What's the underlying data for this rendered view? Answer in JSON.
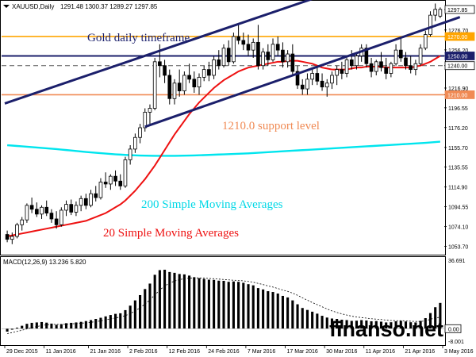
{
  "header": {
    "symbol": "XAUUSD,Daily",
    "ohlc": "1291.48 1300.37 1289.27 1297.85"
  },
  "watermark": "finanso.net",
  "colors": {
    "background": "#ffffff",
    "up_candle": "#ffffff",
    "down_candle": "#000000",
    "channel": "#1b1f6b",
    "resistance_1270": "#ffa500",
    "level_1250": "#1b1f6b",
    "support_1210": "#f08a54",
    "sma20": "#ee1111",
    "sma200": "#00e5ee",
    "bid_line": "#555555"
  },
  "chart_data": [
    {
      "type": "candlestick",
      "title": "XAUUSD,Daily",
      "ylim": [
        1046.0,
        1306.0
      ],
      "y_ticks": [
        "1297.85",
        "1276.70",
        "1270.00",
        "1256.20",
        "1250.00",
        "1240.00",
        "1216.90",
        "1210.00",
        "1196.55",
        "1176.20",
        "1155.70",
        "1135.55",
        "1114.90",
        "1094.55",
        "1074.10",
        "1053.70"
      ],
      "x_ticks": [
        {
          "index": 0,
          "label": "29 Dec 2015"
        },
        {
          "index": 8,
          "label": "11 Jan 2016"
        },
        {
          "index": 17,
          "label": "21 Jan 2016"
        },
        {
          "index": 25,
          "label": "2 Feb 2016"
        },
        {
          "index": 33,
          "label": "12 Feb 2016"
        },
        {
          "index": 41,
          "label": "24 Feb 2016"
        },
        {
          "index": 49,
          "label": "7 Mar 2016"
        },
        {
          "index": 57,
          "label": "17 Mar 2016"
        },
        {
          "index": 65,
          "label": "30 Mar 2016"
        },
        {
          "index": 73,
          "label": "11 Apr 2016"
        },
        {
          "index": 81,
          "label": "21 Apr 2016"
        },
        {
          "index": 89,
          "label": "3 May 2016"
        }
      ],
      "ohlc": [
        [
          1066,
          1070,
          1058,
          1061
        ],
        [
          1061,
          1068,
          1056,
          1064
        ],
        [
          1064,
          1078,
          1062,
          1076
        ],
        [
          1076,
          1084,
          1070,
          1081
        ],
        [
          1081,
          1098,
          1078,
          1096
        ],
        [
          1096,
          1104,
          1088,
          1092
        ],
        [
          1092,
          1099,
          1084,
          1087
        ],
        [
          1087,
          1096,
          1082,
          1094
        ],
        [
          1094,
          1101,
          1085,
          1088
        ],
        [
          1088,
          1092,
          1078,
          1082
        ],
        [
          1082,
          1090,
          1072,
          1076
        ],
        [
          1076,
          1094,
          1074,
          1091
        ],
        [
          1091,
          1101,
          1085,
          1097
        ],
        [
          1097,
          1102,
          1086,
          1089
        ],
        [
          1089,
          1100,
          1085,
          1096
        ],
        [
          1096,
          1106,
          1090,
          1103
        ],
        [
          1103,
          1108,
          1092,
          1096
        ],
        [
          1096,
          1112,
          1094,
          1108
        ],
        [
          1108,
          1116,
          1100,
          1104
        ],
        [
          1104,
          1124,
          1102,
          1120
        ],
        [
          1120,
          1130,
          1114,
          1118
        ],
        [
          1118,
          1128,
          1112,
          1126
        ],
        [
          1126,
          1132,
          1116,
          1121
        ],
        [
          1121,
          1128,
          1112,
          1116
        ],
        [
          1116,
          1146,
          1114,
          1143
        ],
        [
          1143,
          1158,
          1138,
          1154
        ],
        [
          1154,
          1170,
          1150,
          1166
        ],
        [
          1166,
          1180,
          1160,
          1176
        ],
        [
          1176,
          1196,
          1172,
          1192
        ],
        [
          1192,
          1200,
          1180,
          1196
        ],
        [
          1196,
          1248,
          1194,
          1244
        ],
        [
          1244,
          1262,
          1228,
          1240
        ],
        [
          1240,
          1246,
          1222,
          1230
        ],
        [
          1230,
          1236,
          1200,
          1206
        ],
        [
          1206,
          1226,
          1200,
          1222
        ],
        [
          1222,
          1236,
          1208,
          1214
        ],
        [
          1214,
          1234,
          1210,
          1230
        ],
        [
          1230,
          1242,
          1222,
          1226
        ],
        [
          1226,
          1234,
          1212,
          1218
        ],
        [
          1218,
          1232,
          1210,
          1228
        ],
        [
          1228,
          1240,
          1224,
          1236
        ],
        [
          1236,
          1244,
          1224,
          1230
        ],
        [
          1230,
          1250,
          1226,
          1246
        ],
        [
          1246,
          1256,
          1236,
          1240
        ],
        [
          1240,
          1262,
          1238,
          1258
        ],
        [
          1258,
          1266,
          1240,
          1244
        ],
        [
          1244,
          1274,
          1242,
          1270
        ],
        [
          1270,
          1282,
          1262,
          1266
        ],
        [
          1266,
          1274,
          1256,
          1262
        ],
        [
          1262,
          1272,
          1250,
          1256
        ],
        [
          1256,
          1268,
          1248,
          1264
        ],
        [
          1264,
          1282,
          1236,
          1240
        ],
        [
          1240,
          1258,
          1236,
          1254
        ],
        [
          1254,
          1262,
          1240,
          1246
        ],
        [
          1246,
          1268,
          1244,
          1262
        ],
        [
          1262,
          1270,
          1250,
          1256
        ],
        [
          1256,
          1264,
          1238,
          1244
        ],
        [
          1244,
          1256,
          1238,
          1252
        ],
        [
          1252,
          1262,
          1230,
          1234
        ],
        [
          1234,
          1240,
          1216,
          1220
        ],
        [
          1220,
          1226,
          1210,
          1216
        ],
        [
          1216,
          1232,
          1210,
          1226
        ],
        [
          1226,
          1236,
          1220,
          1232
        ],
        [
          1232,
          1238,
          1220,
          1224
        ],
        [
          1224,
          1232,
          1214,
          1218
        ],
        [
          1218,
          1226,
          1208,
          1222
        ],
        [
          1222,
          1234,
          1216,
          1230
        ],
        [
          1230,
          1240,
          1220,
          1236
        ],
        [
          1236,
          1244,
          1226,
          1232
        ],
        [
          1232,
          1248,
          1228,
          1246
        ],
        [
          1246,
          1256,
          1236,
          1240
        ],
        [
          1240,
          1254,
          1236,
          1250
        ],
        [
          1250,
          1262,
          1244,
          1258
        ],
        [
          1258,
          1262,
          1238,
          1242
        ],
        [
          1242,
          1248,
          1228,
          1234
        ],
        [
          1234,
          1246,
          1230,
          1244
        ],
        [
          1244,
          1254,
          1234,
          1238
        ],
        [
          1238,
          1248,
          1226,
          1232
        ],
        [
          1232,
          1244,
          1228,
          1242
        ],
        [
          1242,
          1262,
          1240,
          1256
        ],
        [
          1256,
          1268,
          1244,
          1248
        ],
        [
          1248,
          1254,
          1236,
          1240
        ],
        [
          1240,
          1250,
          1232,
          1236
        ],
        [
          1236,
          1246,
          1230,
          1242
        ],
        [
          1242,
          1262,
          1240,
          1258
        ],
        [
          1258,
          1276,
          1256,
          1272
        ],
        [
          1272,
          1296,
          1270,
          1292
        ],
        [
          1292,
          1304,
          1286,
          1298
        ],
        [
          1291,
          1300,
          1289,
          1298
        ]
      ],
      "series": [
        {
          "name": "20 Simple Moving Averages",
          "values": [
            1064,
            1065,
            1066,
            1067,
            1068,
            1069,
            1070,
            1071,
            1072,
            1073,
            1074,
            1075,
            1076,
            1077,
            1078,
            1079,
            1080,
            1082,
            1084,
            1086,
            1088,
            1091,
            1094,
            1097,
            1101,
            1106,
            1111,
            1117,
            1123,
            1130,
            1137,
            1145,
            1153,
            1161,
            1169,
            1176,
            1183,
            1190,
            1196,
            1202,
            1207,
            1212,
            1217,
            1221,
            1225,
            1228,
            1231,
            1234,
            1236,
            1238,
            1239,
            1240,
            1241,
            1242,
            1243,
            1244,
            1244,
            1245,
            1245,
            1245,
            1244,
            1243,
            1242,
            1240,
            1238,
            1237,
            1236,
            1236,
            1236,
            1236,
            1237,
            1238,
            1238,
            1239,
            1239,
            1239,
            1239,
            1238,
            1238,
            1238,
            1238,
            1238,
            1238,
            1239,
            1240,
            1242,
            1244,
            1247,
            1250
          ]
        },
        {
          "name": "200 Simple Moving Averages",
          "values": [
            1158,
            1157.6,
            1157.2,
            1156.8,
            1156.4,
            1156,
            1155.6,
            1155.2,
            1154.8,
            1154.4,
            1154,
            1153.5,
            1153,
            1152.5,
            1152,
            1151.5,
            1151,
            1150.6,
            1150.2,
            1149.8,
            1149.4,
            1149,
            1148.6,
            1148.3,
            1148,
            1147.7,
            1147.5,
            1147.3,
            1147.2,
            1147.1,
            1147,
            1147,
            1147,
            1147,
            1147,
            1147.1,
            1147.2,
            1147.3,
            1147.4,
            1147.6,
            1147.8,
            1148,
            1148.2,
            1148.4,
            1148.6,
            1148.8,
            1149,
            1149.2,
            1149.4,
            1149.6,
            1149.9,
            1150.2,
            1150.5,
            1150.8,
            1151.1,
            1151.4,
            1151.7,
            1152,
            1152.3,
            1152.6,
            1152.9,
            1153.2,
            1153.5,
            1153.8,
            1154.1,
            1154.4,
            1154.7,
            1155,
            1155.3,
            1155.6,
            1155.9,
            1156.2,
            1156.5,
            1156.8,
            1157.1,
            1157.4,
            1157.7,
            1158,
            1158.3,
            1158.6,
            1158.9,
            1159.2,
            1159.5,
            1159.8,
            1160.1,
            1160.4,
            1160.8,
            1161.2,
            1161.6
          ]
        }
      ],
      "lines": {
        "channel_upper": {
          "from": [
            0,
            1201
          ],
          "to": [
            72,
            1326
          ]
        },
        "channel_lower": {
          "from": [
            28,
            1177
          ],
          "to": [
            92,
            1290
          ]
        },
        "hlines": [
          {
            "value": 1270.0,
            "label": "1270.00"
          },
          {
            "value": 1250.0,
            "label": "1250.00"
          },
          {
            "value": 1240.0,
            "label": "1240.00"
          },
          {
            "value": 1210.0,
            "label": "1210.00"
          },
          {
            "value": 1297.85,
            "label": "1297.85"
          }
        ]
      },
      "annotations": [
        "Gold daily timeframe",
        "1210.0 support level",
        "200 Simple Moving Averages",
        "20 Simple Moving Averages"
      ]
    },
    {
      "type": "bar",
      "title": "MACD(12,26,9) 13.236 5.820",
      "ylim": [
        -8.001,
        36.691
      ],
      "y_ticks": [
        "36.691",
        "0.00",
        "-8.001"
      ],
      "values": [
        -1.5,
        -0.5,
        0.5,
        1.5,
        2.5,
        3.0,
        3.2,
        3.4,
        3.1,
        2.6,
        2.0,
        2.3,
        2.8,
        3.0,
        3.2,
        3.5,
        3.9,
        4.4,
        5.0,
        5.6,
        6.3,
        7.0,
        7.6,
        7.9,
        9.5,
        11.8,
        14.5,
        17.2,
        20.3,
        23.1,
        27.6,
        30.0,
        30.2,
        29.0,
        28.6,
        28.0,
        27.8,
        27.2,
        26.4,
        25.9,
        25.5,
        25.1,
        25.0,
        24.6,
        24.5,
        24.0,
        24.2,
        24.0,
        23.5,
        22.8,
        22.2,
        20.8,
        20.1,
        19.2,
        18.8,
        18.0,
        16.8,
        16.0,
        14.5,
        12.5,
        10.6,
        9.6,
        8.7,
        7.7,
        6.6,
        5.7,
        5.2,
        5.0,
        4.6,
        4.4,
        4.0,
        4.1,
        4.4,
        4.2,
        3.8,
        3.9,
        3.6,
        3.2,
        3.3,
        3.8,
        4.0,
        3.7,
        3.3,
        3.2,
        4.0,
        5.4,
        8.0,
        11.0,
        13.2
      ],
      "series": [
        {
          "name": "signal",
          "values": [
            -2.5,
            -2.0,
            -1.4,
            -0.8,
            -0.1,
            0.5,
            1.1,
            1.6,
            2.0,
            2.2,
            2.2,
            2.2,
            2.3,
            2.5,
            2.6,
            2.8,
            3.0,
            3.3,
            3.6,
            4.0,
            4.5,
            5.0,
            5.5,
            6.0,
            6.7,
            7.7,
            9.1,
            10.7,
            12.6,
            14.7,
            17.3,
            19.8,
            21.9,
            23.3,
            24.4,
            25.1,
            25.6,
            25.9,
            26.0,
            26.0,
            25.9,
            25.7,
            25.6,
            25.4,
            25.2,
            25.0,
            24.8,
            24.7,
            24.5,
            24.2,
            23.8,
            23.2,
            22.6,
            21.9,
            21.3,
            20.6,
            19.8,
            19.1,
            18.2,
            17.1,
            15.8,
            14.6,
            13.4,
            12.3,
            11.2,
            10.1,
            9.1,
            8.3,
            7.6,
            7.0,
            6.4,
            6.0,
            5.7,
            5.4,
            5.1,
            4.9,
            4.7,
            4.4,
            4.2,
            4.1,
            4.1,
            4.0,
            3.8,
            3.7,
            3.7,
            4.0,
            4.8,
            5.6,
            5.8
          ]
        }
      ]
    }
  ]
}
